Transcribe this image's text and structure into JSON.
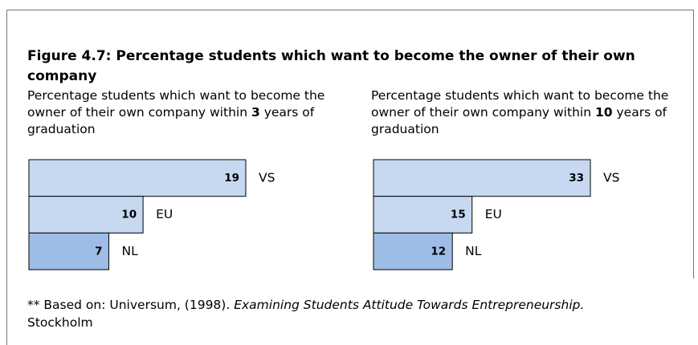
{
  "figure": {
    "title": "Figure 4.7: Percentage students which want to become the owner of their own company",
    "footnote": {
      "lead": "** Based on: Universum, (1998).",
      "italic": "Examining Students Attitude Towards Entrepreneurship.",
      "rest": "Stockholm"
    }
  },
  "chart_data": [
    {
      "type": "bar",
      "orientation": "horizontal",
      "subtitle": {
        "lead": "Percentage students which want to become the owner of their own company within",
        "emphasis": "3",
        "rest": "years of graduation"
      },
      "categories": [
        "VS",
        "EU",
        "NL"
      ],
      "values": [
        19,
        10,
        7
      ],
      "colors": [
        "#c6d9f1",
        "#c6d9f1",
        "#9dbde6"
      ]
    },
    {
      "type": "bar",
      "orientation": "horizontal",
      "subtitle": {
        "lead": "Percentage students which want to become the owner of their own company within",
        "emphasis": "10",
        "rest": "years of graduation"
      },
      "categories": [
        "VS",
        "EU",
        "NL"
      ],
      "values": [
        33,
        15,
        12
      ],
      "colors": [
        "#c6d9f1",
        "#c6d9f1",
        "#9dbde6"
      ]
    }
  ]
}
